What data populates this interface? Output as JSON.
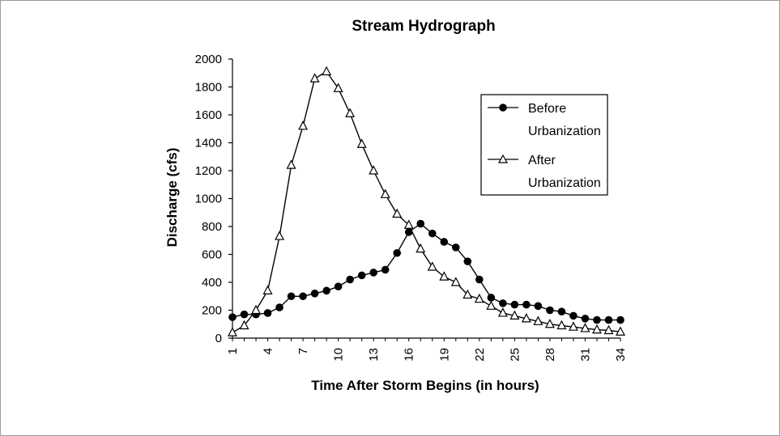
{
  "chart_data": {
    "type": "line",
    "title": "Stream Hydrograph",
    "xlabel": "Time After Storm Begins (in hours)",
    "ylabel": "Discharge (cfs)",
    "x": [
      1,
      2,
      3,
      4,
      5,
      6,
      7,
      8,
      9,
      10,
      11,
      12,
      13,
      14,
      15,
      16,
      17,
      18,
      19,
      20,
      21,
      22,
      23,
      24,
      25,
      26,
      27,
      28,
      29,
      30,
      31,
      32,
      33,
      34
    ],
    "x_ticks": [
      "1",
      "4",
      "7",
      "10",
      "13",
      "16",
      "19",
      "22",
      "25",
      "28",
      "31",
      "34"
    ],
    "ylim": [
      0,
      2000
    ],
    "y_ticks": [
      "0",
      "200",
      "400",
      "600",
      "800",
      "1000",
      "1200",
      "1400",
      "1600",
      "1800",
      "2000"
    ],
    "grid": false,
    "legend_position": "upper-right",
    "series": [
      {
        "name": "Before Urbanization",
        "legend_lines": [
          "Before",
          "Urbanization"
        ],
        "marker": "filled-circle",
        "values": [
          150,
          170,
          170,
          180,
          220,
          300,
          300,
          320,
          340,
          370,
          420,
          450,
          470,
          490,
          610,
          760,
          820,
          750,
          690,
          650,
          550,
          420,
          290,
          250,
          240,
          240,
          230,
          200,
          190,
          160,
          140,
          130,
          130,
          130
        ]
      },
      {
        "name": "After Urbanization",
        "legend_lines": [
          "After",
          "Urbanization"
        ],
        "marker": "open-triangle",
        "values": [
          40,
          90,
          200,
          340,
          730,
          1240,
          1520,
          1860,
          1910,
          1790,
          1610,
          1390,
          1200,
          1030,
          890,
          810,
          640,
          510,
          440,
          400,
          310,
          280,
          230,
          180,
          160,
          140,
          120,
          100,
          90,
          80,
          70,
          60,
          55,
          45
        ]
      }
    ]
  }
}
